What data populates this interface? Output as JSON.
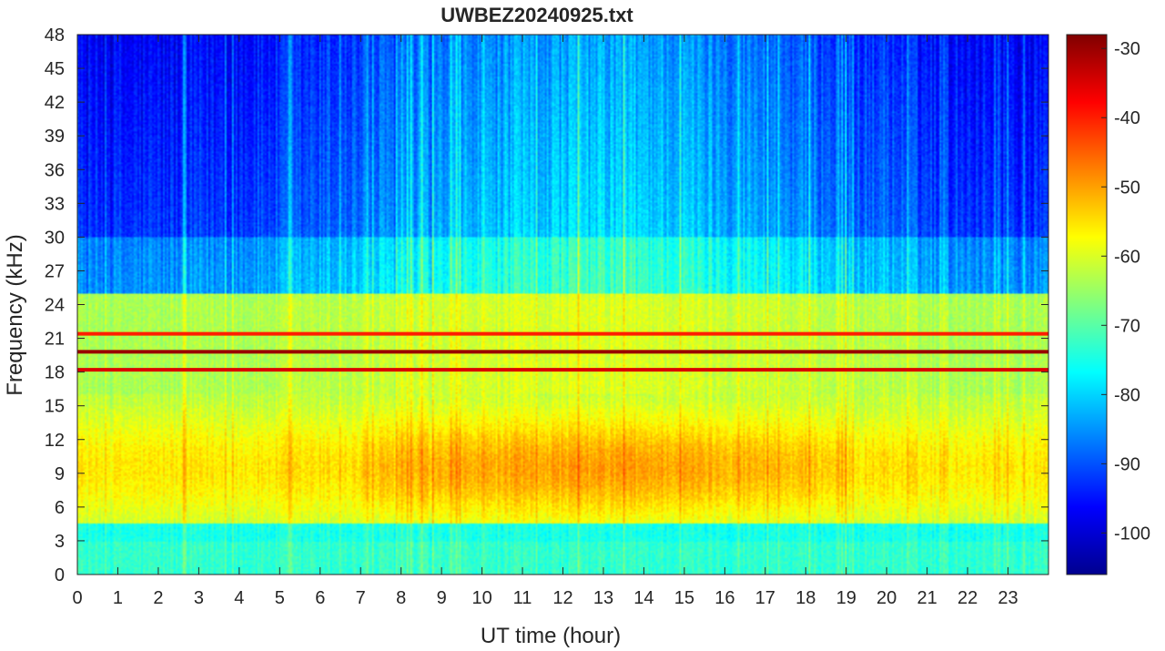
{
  "chart_data": {
    "type": "heatmap",
    "title": "UWBEZ20240925.txt",
    "xlabel": "UT time (hour)",
    "ylabel": "Frequency (kHz)",
    "xlim": [
      0,
      24
    ],
    "ylim": [
      0,
      48
    ],
    "x_ticks": [
      0,
      1,
      2,
      3,
      4,
      5,
      6,
      7,
      8,
      9,
      10,
      11,
      12,
      13,
      14,
      15,
      16,
      17,
      18,
      19,
      20,
      21,
      22,
      23
    ],
    "y_ticks": [
      0,
      3,
      6,
      9,
      12,
      15,
      18,
      21,
      24,
      27,
      30,
      33,
      36,
      39,
      42,
      45,
      48
    ],
    "colorbar": {
      "colormap": "jet",
      "clim": [
        -106,
        -28
      ],
      "ticks": [
        -100,
        -90,
        -80,
        -70,
        -60,
        -50,
        -40,
        -30
      ]
    },
    "narrowband_lines": [
      {
        "freq_khz": 18.2,
        "level_db": -35
      },
      {
        "freq_khz": 19.8,
        "level_db": -30
      },
      {
        "freq_khz": 21.4,
        "level_db": -40
      }
    ],
    "broadband_noise": {
      "freq_range_khz": [
        4.5,
        16
      ],
      "peak_hours": [
        8,
        19
      ],
      "level_db": -52
    }
  }
}
